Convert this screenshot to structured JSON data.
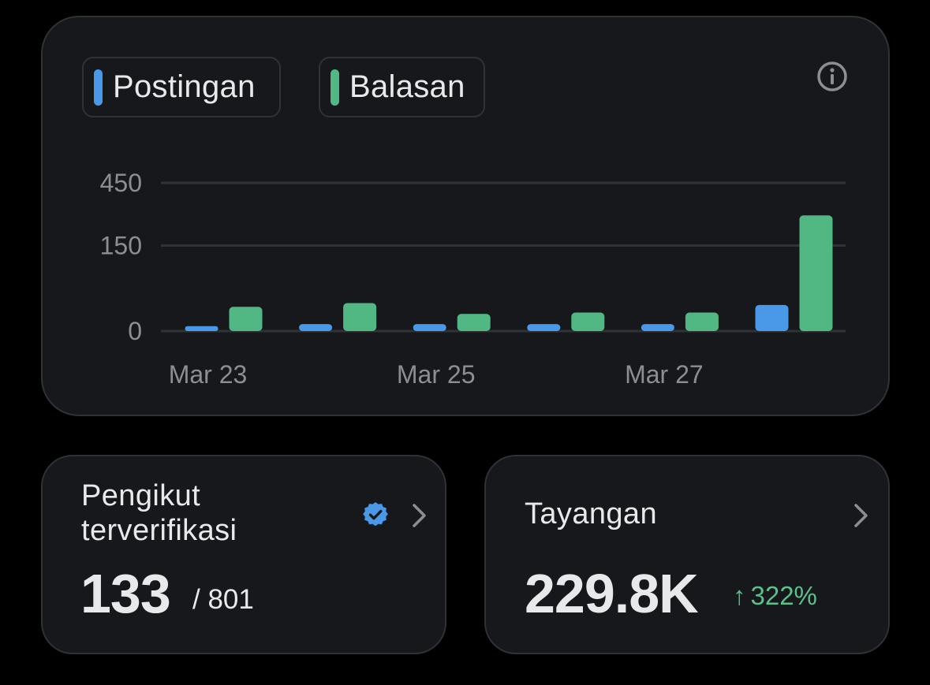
{
  "colors": {
    "posts": "#4a99e9",
    "replies": "#52b883",
    "trend_up": "#5bc08a",
    "verified": "#4a99e9"
  },
  "chart": {
    "legend": [
      {
        "label": "Postingan",
        "color": "#4a99e9"
      },
      {
        "label": "Balasan",
        "color": "#52b883"
      }
    ],
    "info_icon": "info-circle-icon"
  },
  "chart_data": {
    "type": "bar",
    "categories": [
      "Mar 23",
      "Mar 24",
      "Mar 25",
      "Mar 26",
      "Mar 27",
      "Mar 28"
    ],
    "x_tick_labels": [
      "Mar 23",
      "Mar 25",
      "Mar 27"
    ],
    "y_ticks": [
      0,
      150,
      450
    ],
    "y_tick_labels": [
      "0",
      "150",
      "450"
    ],
    "y_scale": "sqrt",
    "ylim": [
      0,
      450
    ],
    "grid": true,
    "legend_position": "top-left",
    "series": [
      {
        "name": "Postingan",
        "color": "#4a99e9",
        "values": [
          0.5,
          1,
          1,
          1,
          1,
          14
        ]
      },
      {
        "name": "Balasan",
        "color": "#52b883",
        "values": [
          12,
          16,
          6,
          7,
          7,
          274
        ]
      }
    ]
  },
  "followers": {
    "title_line1": "Pengikut",
    "title_line2": "terverifikasi",
    "value": "133",
    "total": "/ 801",
    "badge_icon": "verified-badge-icon",
    "chevron_icon": "chevron-right-icon"
  },
  "views": {
    "title": "Tayangan",
    "value": "229.8K",
    "trend_arrow": "↑",
    "trend_value": "322%",
    "chevron_icon": "chevron-right-icon"
  }
}
